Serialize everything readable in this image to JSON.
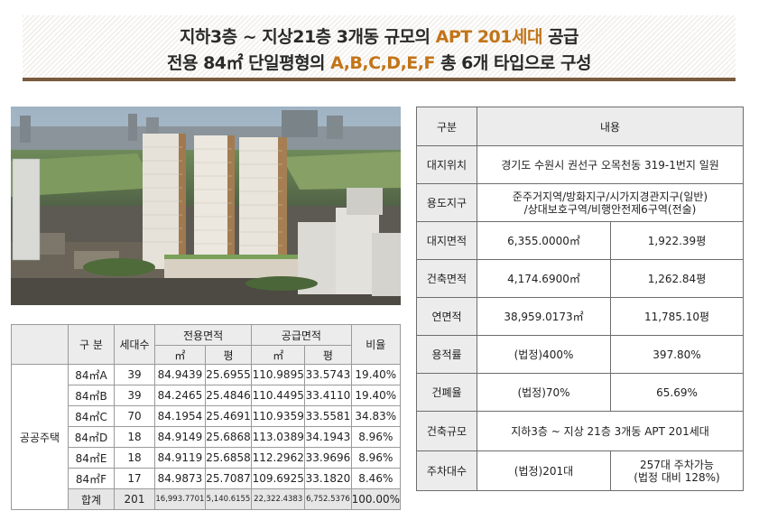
{
  "header": {
    "line1_pre": "지하3층 ~ 지상21층 3개동 규모의 ",
    "line1_accent": "APT 201세대",
    "line1_post": " 공급",
    "line2_pre": "전용 84㎡ 단일평형의 ",
    "line2_accent": "A,B,C,D,E,F",
    "line2_post": " 총 6개 타입으로 구성"
  },
  "unit_table": {
    "headers": {
      "type": "구 분",
      "households": "세대수",
      "exclusive_area": "전용면적",
      "supply_area": "공급면적",
      "ratio": "비율",
      "sqm": "㎡",
      "pyeong": "평",
      "category": "공공주택"
    },
    "rows": [
      {
        "type": "84㎡A",
        "households": "39",
        "ex_sqm": "84.9439",
        "ex_py": "25.6955",
        "su_sqm": "110.9895",
        "su_py": "33.5743",
        "ratio": "19.40%"
      },
      {
        "type": "84㎡B",
        "households": "39",
        "ex_sqm": "84.2465",
        "ex_py": "25.4846",
        "su_sqm": "110.4495",
        "su_py": "33.4110",
        "ratio": "19.40%"
      },
      {
        "type": "84㎡C",
        "households": "70",
        "ex_sqm": "84.1954",
        "ex_py": "25.4691",
        "su_sqm": "110.9359",
        "su_py": "33.5581",
        "ratio": "34.83%"
      },
      {
        "type": "84㎡D",
        "households": "18",
        "ex_sqm": "84.9149",
        "ex_py": "25.6868",
        "su_sqm": "113.0389",
        "su_py": "34.1943",
        "ratio": "8.96%"
      },
      {
        "type": "84㎡E",
        "households": "18",
        "ex_sqm": "84.9119",
        "ex_py": "25.6858",
        "su_sqm": "112.2962",
        "su_py": "33.9696",
        "ratio": "8.96%"
      },
      {
        "type": "84㎡F",
        "households": "17",
        "ex_sqm": "84.9873",
        "ex_py": "25.7087",
        "su_sqm": "109.6925",
        "su_py": "33.1820",
        "ratio": "8.46%"
      }
    ],
    "total": {
      "type": "합계",
      "households": "201",
      "ex_sqm": "16,993.7701",
      "ex_py": "5,140.6155",
      "su_sqm": "22,322.4383",
      "su_py": "6,752.5376",
      "ratio": "100.00%"
    }
  },
  "info_table": {
    "header": {
      "label": "구분",
      "value": "내용"
    },
    "site_location": {
      "label": "대지위치",
      "value": "경기도 수원시 권선구 오목천동 319-1번지 일원"
    },
    "zoning": {
      "label": "용도지구",
      "value_line1": "준주거지역/방화지구/시가지경관지구(일반)",
      "value_line2": "/상대보호구역/비행안전제6구역(전술)"
    },
    "site_area": {
      "label": "대지면적",
      "sqm": "6,355.0000㎡",
      "pyeong": "1,922.39평"
    },
    "building_area": {
      "label": "건축면적",
      "sqm": "4,174.6900㎡",
      "pyeong": "1,262.84평"
    },
    "floor_area": {
      "label": "연면적",
      "sqm": "38,959.0173㎡",
      "pyeong": "11,785.10평"
    },
    "far": {
      "label": "용적률",
      "legal": "(법정)400%",
      "actual": "397.80%"
    },
    "bcr": {
      "label": "건폐율",
      "legal": "(법정)70%",
      "actual": "65.69%"
    },
    "scale": {
      "label": "건축규모",
      "value": "지하3층 ~ 지상 21층 3개동 APT 201세대"
    },
    "parking": {
      "label": "주차대수",
      "legal": "(법정)201대",
      "actual_line1": "257대 주차가능",
      "actual_line2": "(법정 대비 128%)"
    }
  },
  "colors": {
    "accent": "#c27418",
    "banner_rule": "#7a5a3e",
    "header_cell": "#ececec"
  }
}
